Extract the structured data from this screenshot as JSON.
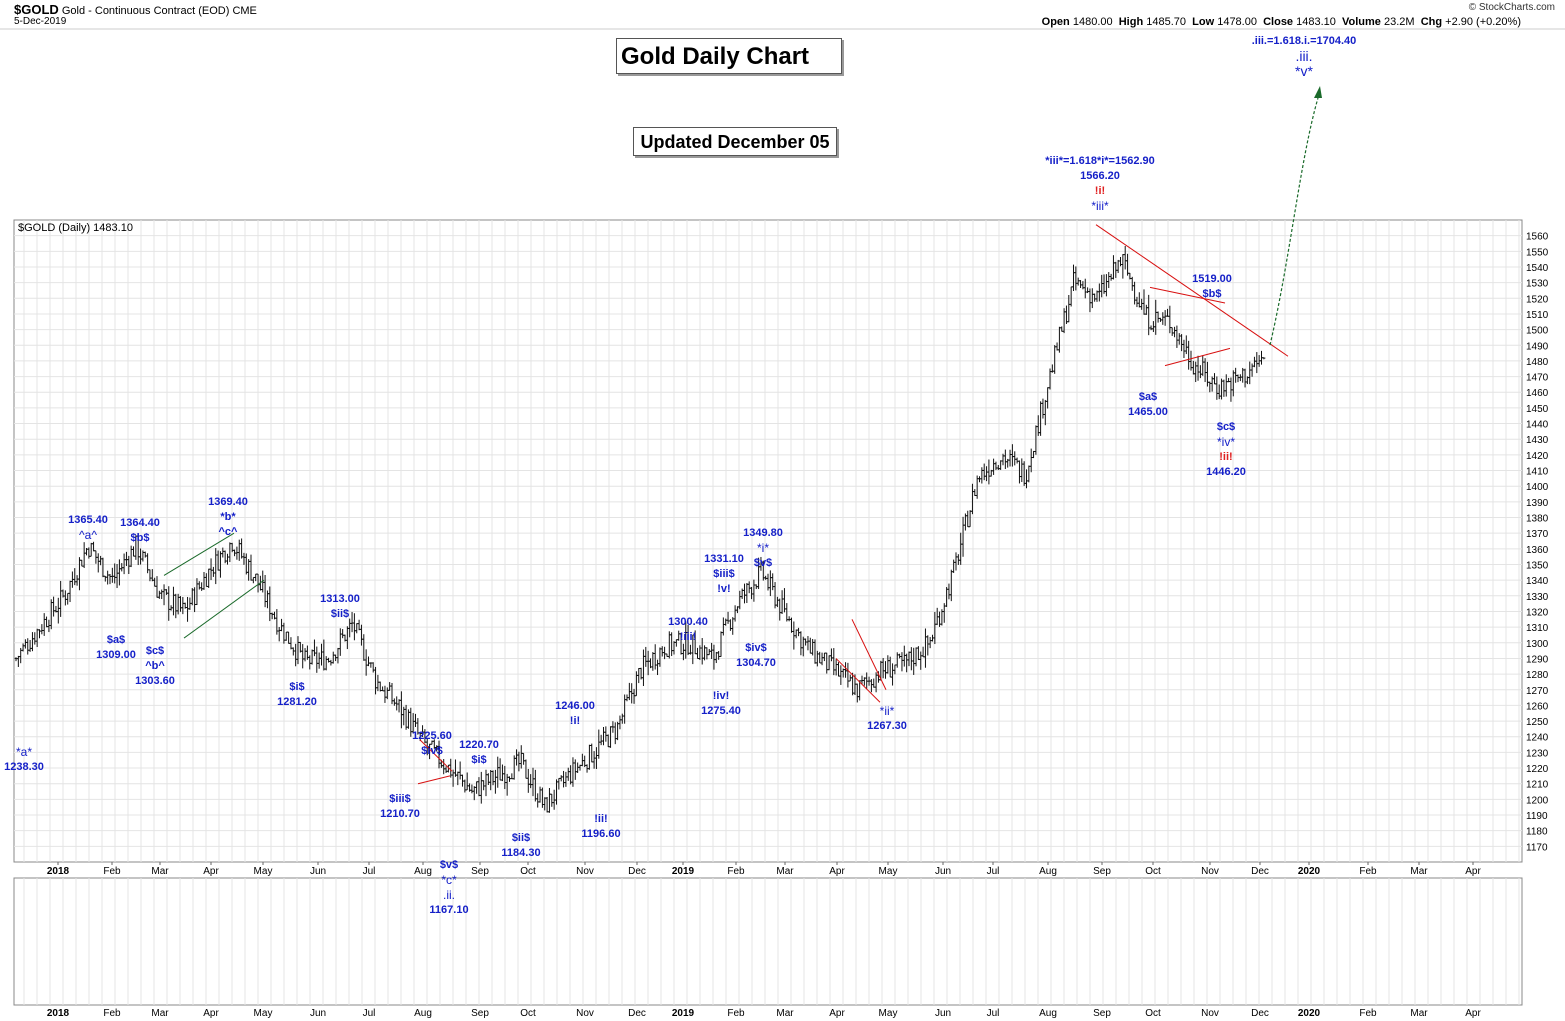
{
  "header": {
    "symbol": "$GOLD",
    "name": "Gold - Continuous Contract (EOD)",
    "exchange": "CME",
    "date": "5-Dec-2019",
    "open_label": "Open",
    "open": "1480.00",
    "high_label": "High",
    "high": "1485.70",
    "low_label": "Low",
    "low": "1478.00",
    "close_label": "Close",
    "close": "1483.10",
    "volume_label": "Volume",
    "volume": "23.2M",
    "chg_label": "Chg",
    "chg": "+2.90 (+0.20%)",
    "brand": "© StockCharts.com"
  },
  "title": "Gold Daily Chart",
  "updated": "Updated December 05",
  "panel_label": "$GOLD (Daily) 1483.10",
  "colors": {
    "annotation": "#1520c8",
    "red_label": "#e02020",
    "trend_red": "#d81010",
    "channel_green": "#1a6a2a",
    "target_arrow": "#1a6a2a"
  },
  "chart_data": {
    "type": "ohlc-bar",
    "title": "Gold Daily Chart",
    "ylim": [
      1160,
      1570
    ],
    "y_ticks": [
      1170,
      1180,
      1190,
      1200,
      1210,
      1220,
      1230,
      1240,
      1250,
      1260,
      1270,
      1280,
      1290,
      1300,
      1310,
      1320,
      1330,
      1340,
      1350,
      1360,
      1370,
      1380,
      1390,
      1400,
      1410,
      1420,
      1430,
      1440,
      1450,
      1460,
      1470,
      1480,
      1490,
      1500,
      1510,
      1520,
      1530,
      1540,
      1550,
      1560
    ],
    "x_ticks": [
      "2018",
      "Feb",
      "Mar",
      "Apr",
      "May",
      "Jun",
      "Jul",
      "Aug",
      "Sep",
      "Oct",
      "Nov",
      "Dec",
      "2019",
      "Feb",
      "Mar",
      "Apr",
      "May",
      "Jun",
      "Jul",
      "Aug",
      "Sep",
      "Oct",
      "Nov",
      "Dec",
      "2020",
      "Feb",
      "Mar",
      "Apr"
    ],
    "price_path": [
      [
        0,
        1290
      ],
      [
        1,
        1310
      ],
      [
        2,
        1330
      ],
      [
        3,
        1362
      ],
      [
        4,
        1340
      ],
      [
        5,
        1362
      ],
      [
        6,
        1330
      ],
      [
        7,
        1320
      ],
      [
        8,
        1345
      ],
      [
        9,
        1365
      ],
      [
        10,
        1340
      ],
      [
        11,
        1310
      ],
      [
        12,
        1288
      ],
      [
        13,
        1290
      ],
      [
        14,
        1312
      ],
      [
        15,
        1275
      ],
      [
        16,
        1258
      ],
      [
        17,
        1235
      ],
      [
        18,
        1220
      ],
      [
        19,
        1205
      ],
      [
        20,
        1215
      ],
      [
        21,
        1223
      ],
      [
        22,
        1195
      ],
      [
        23,
        1215
      ],
      [
        24,
        1230
      ],
      [
        25,
        1245
      ],
      [
        26,
        1283
      ],
      [
        27,
        1298
      ],
      [
        28,
        1300
      ],
      [
        29,
        1290
      ],
      [
        30,
        1325
      ],
      [
        31,
        1345
      ],
      [
        32,
        1318
      ],
      [
        33,
        1295
      ],
      [
        34,
        1283
      ],
      [
        35,
        1270
      ],
      [
        36,
        1282
      ],
      [
        37,
        1287
      ],
      [
        38,
        1300
      ],
      [
        39,
        1345
      ],
      [
        40,
        1405
      ],
      [
        41,
        1420
      ],
      [
        42,
        1408
      ],
      [
        43,
        1470
      ],
      [
        44,
        1530
      ],
      [
        45,
        1520
      ],
      [
        46,
        1545
      ],
      [
        47,
        1508
      ],
      [
        48,
        1505
      ],
      [
        49,
        1478
      ],
      [
        50,
        1463
      ],
      [
        51,
        1470
      ],
      [
        52,
        1483
      ]
    ],
    "annotations": [
      {
        "date": "Dec 2017",
        "value": "1238.30",
        "label": "*a*",
        "pos": "below"
      },
      {
        "date": "Jan 2018",
        "value": "1365.40",
        "label": "^a^",
        "pos": "above"
      },
      {
        "date": "Feb 2018",
        "value": "1309.00",
        "label": "$a$",
        "pos": "below"
      },
      {
        "date": "Feb 2018",
        "value": "1364.40",
        "label": "$b$",
        "pos": "above"
      },
      {
        "date": "Mar 2018",
        "value": "1303.60",
        "label": "$c$ ^b^",
        "pos": "below"
      },
      {
        "date": "Apr 2018",
        "value": "1369.40",
        "label": "*b* ^c^",
        "pos": "above"
      },
      {
        "date": "May 2018",
        "value": "1281.20",
        "label": "$i$",
        "pos": "below"
      },
      {
        "date": "Jun 2018",
        "value": "1313.00",
        "label": "$ii$",
        "pos": "above"
      },
      {
        "date": "Jul 2018",
        "value": "1210.70",
        "label": "$iii$",
        "pos": "below"
      },
      {
        "date": "Jul 2018",
        "value": "1225.60",
        "label": "$iv$",
        "pos": "above"
      },
      {
        "date": "Aug 2018",
        "value": "1167.10",
        "label": "$v$ *c* .ii.",
        "pos": "below"
      },
      {
        "date": "Aug 2018",
        "value": "1220.70",
        "label": "$i$",
        "pos": "above"
      },
      {
        "date": "Sep 2018",
        "value": "1184.30",
        "label": "$ii$",
        "pos": "below"
      },
      {
        "date": "Oct 2018",
        "value": "1246.00",
        "label": "!i!",
        "pos": "above"
      },
      {
        "date": "Nov 2018",
        "value": "1196.60",
        "label": "!ii!",
        "pos": "below"
      },
      {
        "date": "Dec 2018",
        "value": "1300.40",
        "label": "!iii!",
        "pos": "above"
      },
      {
        "date": "Jan 2019",
        "value": "1275.40",
        "label": "!iv!",
        "pos": "below"
      },
      {
        "date": "Jan 2019",
        "value": "1331.10",
        "label": "$iii$ !v!",
        "pos": "above"
      },
      {
        "date": "Feb 2019",
        "value": "1304.70",
        "label": "$iv$",
        "pos": "below"
      },
      {
        "date": "Feb 2019",
        "value": "1349.80",
        "label": "*i* $v$",
        "pos": "above"
      },
      {
        "date": "Apr 2019",
        "value": "1267.30",
        "label": "*ii*",
        "pos": "below"
      },
      {
        "date": "Sep 2019",
        "value": "1566.20",
        "label": "!i! *iii*",
        "pos": "above",
        "note": "*iii*=1.618*i*=1562.90"
      },
      {
        "date": "Sep 2019",
        "value": "1465.00",
        "label": "$a$",
        "pos": "below"
      },
      {
        "date": "Oct 2019",
        "value": "1519.00",
        "label": "$b$",
        "pos": "above"
      },
      {
        "date": "Nov 2019",
        "value": "1446.20",
        "label": "$c$ *iv* !ii!",
        "pos": "below"
      },
      {
        "date": "Jan 2020",
        "value": "1704.40",
        "label": ".iii. *v*",
        "pos": "target",
        "note": ".iii.=1.618.i.=1704.40"
      }
    ]
  },
  "labels": {
    "a1": {
      "price": "1238.30",
      "l1": "*a*"
    },
    "a2": {
      "price": "1365.40",
      "l1": "^a^"
    },
    "a3": {
      "price": "1309.00",
      "l1": "$a$"
    },
    "a4": {
      "price": "1364.40",
      "l1": "$b$"
    },
    "a5": {
      "price": "1303.60",
      "l1": "$c$",
      "l2": "^b^"
    },
    "a6": {
      "price": "1369.40",
      "l1": "*b*",
      "l2": "^c^"
    },
    "a7": {
      "price": "1281.20",
      "l1": "$i$"
    },
    "a8": {
      "price": "1313.00",
      "l1": "$ii$"
    },
    "a9": {
      "price": "1210.70",
      "l1": "$iii$"
    },
    "a10": {
      "price": "1225.60",
      "l1": "$iv$"
    },
    "a11": {
      "price": "1167.10",
      "l1": "$v$",
      "l2": "*c*",
      "l3": ".ii."
    },
    "a12": {
      "price": "1220.70",
      "l1": "$i$"
    },
    "a13": {
      "price": "1184.30",
      "l1": "$ii$"
    },
    "a14": {
      "price": "1246.00",
      "l1": "!i!"
    },
    "a15": {
      "price": "1196.60",
      "l1": "!ii!"
    },
    "a16": {
      "price": "1300.40",
      "l1": "!iii!"
    },
    "a17": {
      "price": "1275.40",
      "l1": "!iv!"
    },
    "a18": {
      "price": "1331.10",
      "l1": "$iii$",
      "l2": "!v!"
    },
    "a19": {
      "price": "1304.70",
      "l1": "$iv$"
    },
    "a20": {
      "price": "1349.80",
      "l1": "*i*",
      "l2": "$v$"
    },
    "a21": {
      "price": "1267.30",
      "l1": "*ii*"
    },
    "a22": {
      "note": "*iii*=1.618*i*=1562.90",
      "price": "1566.20",
      "l1": "!i!",
      "l2": "*iii*"
    },
    "a23": {
      "price": "1465.00",
      "l1": "$a$"
    },
    "a24": {
      "price": "1519.00",
      "l1": "$b$"
    },
    "a25": {
      "price": "1446.20",
      "l1": "$c$",
      "l2": "*iv*",
      "l3": "!ii!"
    },
    "a26": {
      "note": ".iii.=1.618.i.=1704.40",
      "l1": ".iii.",
      "l2": "*v*"
    }
  }
}
